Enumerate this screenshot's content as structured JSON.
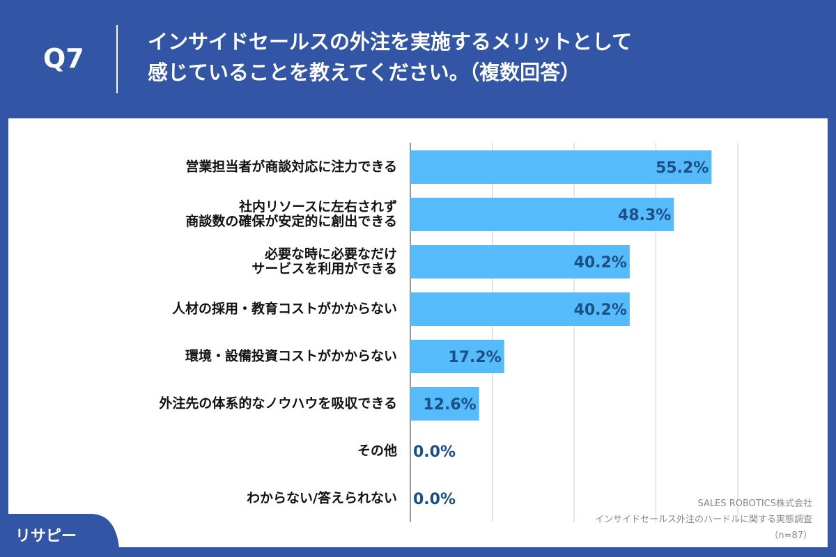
{
  "chart_data": {
    "type": "barh",
    "question": "Q7",
    "title": "インサイドセールスの外注を実施するメリットとして\n感じていることを教えてください。（複数回答）",
    "categories": [
      "営業担当者が商談対応に注力できる",
      "社内リソースに左右されず\n商談数の確保が安定的に創出できる",
      "必要な時に必要なだけ\nサービスを利用ができる",
      "人材の採用・教育コストがかからない",
      "環境・設備投資コストがかからない",
      "外注先の体系的なノウハウを吸収できる",
      "その他",
      "わからない/答えられない"
    ],
    "values": [
      55.2,
      48.3,
      40.2,
      40.2,
      17.2,
      12.6,
      0.0,
      0.0
    ],
    "value_labels": [
      "55.2%",
      "48.3%",
      "40.2%",
      "40.2%",
      "17.2%",
      "12.6%",
      "0.0%",
      "0.0%"
    ],
    "color": "#55bbfa",
    "xlim": [
      0,
      60
    ],
    "xticks": [
      0,
      15,
      30,
      45,
      60
    ],
    "grid": true,
    "source": [
      "SALES ROBOTICS株式会社",
      "インサイドセールス外注のハードルに関する実態調査",
      "（n=87）"
    ],
    "logo": "リサピー"
  }
}
